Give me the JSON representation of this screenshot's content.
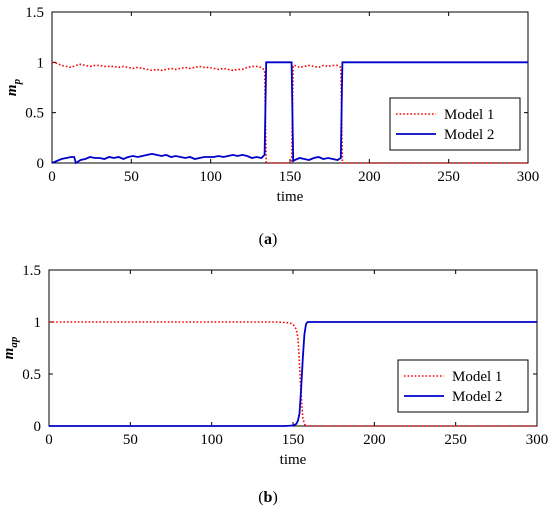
{
  "colors": {
    "model1": "#ff0000",
    "model2": "#0000cc",
    "axis": "#000000"
  },
  "chart_data": [
    {
      "type": "line",
      "panel_label": "(a)",
      "panel_letter": "a",
      "xlabel": "time",
      "ylabel": "m",
      "ylabel_sub": "p",
      "xlim": [
        0,
        300
      ],
      "ylim": [
        0,
        1.5
      ],
      "xticks": [
        0,
        50,
        100,
        150,
        200,
        250,
        300
      ],
      "yticks": [
        0,
        0.5,
        1,
        1.5
      ],
      "ytick_labels": [
        "0",
        "0.5",
        "1",
        "1.5"
      ],
      "legend_position": "center-right",
      "grid": false,
      "series": [
        {
          "name": "Model 1",
          "style": "dotted",
          "color": "#ff0000",
          "x": [
            0,
            3,
            6,
            9,
            12,
            15,
            18,
            21,
            24,
            27,
            30,
            33,
            36,
            39,
            42,
            45,
            48,
            51,
            54,
            57,
            60,
            63,
            66,
            69,
            72,
            75,
            78,
            81,
            84,
            87,
            90,
            93,
            96,
            99,
            102,
            105,
            108,
            111,
            114,
            117,
            120,
            123,
            126,
            129,
            132,
            134,
            135,
            136,
            150,
            151,
            152,
            153,
            156,
            159,
            162,
            165,
            168,
            171,
            174,
            177,
            180,
            182,
            183,
            184,
            300
          ],
          "y": [
            1.0,
            0.99,
            0.97,
            0.96,
            0.95,
            0.97,
            0.98,
            0.97,
            0.96,
            0.97,
            0.97,
            0.96,
            0.96,
            0.96,
            0.95,
            0.96,
            0.95,
            0.94,
            0.95,
            0.94,
            0.93,
            0.92,
            0.93,
            0.92,
            0.93,
            0.94,
            0.93,
            0.94,
            0.95,
            0.94,
            0.95,
            0.96,
            0.95,
            0.95,
            0.94,
            0.93,
            0.94,
            0.93,
            0.92,
            0.93,
            0.93,
            0.95,
            0.96,
            0.96,
            0.95,
            0.92,
            0.0,
            0.0,
            0.0,
            0.0,
            0.97,
            0.97,
            0.95,
            0.96,
            0.97,
            0.96,
            0.95,
            0.97,
            0.96,
            0.97,
            0.97,
            0.95,
            0.0,
            0.0,
            0.0
          ]
        },
        {
          "name": "Model 2",
          "style": "solid",
          "color": "#0000cc",
          "x": [
            0,
            3,
            6,
            9,
            12,
            14,
            15,
            18,
            21,
            24,
            27,
            30,
            33,
            36,
            39,
            42,
            45,
            48,
            51,
            54,
            57,
            60,
            63,
            66,
            69,
            72,
            75,
            78,
            81,
            84,
            87,
            90,
            93,
            96,
            99,
            102,
            105,
            108,
            111,
            114,
            117,
            120,
            123,
            126,
            129,
            132,
            134,
            135,
            136,
            150,
            151,
            152,
            153,
            156,
            159,
            162,
            165,
            168,
            171,
            174,
            177,
            180,
            182,
            183,
            184,
            300
          ],
          "y": [
            0.0,
            0.02,
            0.04,
            0.05,
            0.06,
            0.06,
            0.0,
            0.03,
            0.04,
            0.06,
            0.05,
            0.05,
            0.04,
            0.06,
            0.05,
            0.06,
            0.04,
            0.06,
            0.07,
            0.06,
            0.07,
            0.08,
            0.09,
            0.08,
            0.07,
            0.08,
            0.06,
            0.07,
            0.06,
            0.05,
            0.06,
            0.04,
            0.05,
            0.06,
            0.06,
            0.06,
            0.07,
            0.06,
            0.07,
            0.08,
            0.07,
            0.08,
            0.07,
            0.05,
            0.06,
            0.05,
            0.08,
            1.0,
            1.0,
            1.0,
            1.0,
            0.02,
            0.03,
            0.05,
            0.04,
            0.03,
            0.05,
            0.06,
            0.04,
            0.05,
            0.04,
            0.03,
            0.05,
            1.0,
            1.0,
            1.0
          ]
        }
      ]
    },
    {
      "type": "line",
      "panel_label": "(b)",
      "panel_letter": "b",
      "xlabel": "time",
      "ylabel": "m",
      "ylabel_sub": "ap",
      "xlim": [
        0,
        300
      ],
      "ylim": [
        0,
        1.5
      ],
      "xticks": [
        0,
        50,
        100,
        150,
        200,
        250,
        300
      ],
      "yticks": [
        0,
        0.5,
        1,
        1.5
      ],
      "ytick_labels": [
        "0",
        "0.5",
        "1",
        "1.5"
      ],
      "legend_position": "center-right",
      "grid": false,
      "series": [
        {
          "name": "Model 1",
          "style": "dotted",
          "color": "#ff0000",
          "x": [
            0,
            140,
            145,
            148,
            150,
            152,
            153,
            154,
            155,
            156,
            157,
            158,
            160,
            300
          ],
          "y": [
            1.0,
            1.0,
            0.995,
            0.99,
            0.98,
            0.93,
            0.85,
            0.6,
            0.3,
            0.08,
            0.02,
            0.0,
            0.0,
            0.0
          ]
        },
        {
          "name": "Model 2",
          "style": "solid",
          "color": "#0000cc",
          "x": [
            0,
            145,
            150,
            152,
            153,
            154,
            155,
            156,
            157,
            158,
            159,
            300
          ],
          "y": [
            0.0,
            0.0,
            0.005,
            0.02,
            0.05,
            0.12,
            0.35,
            0.65,
            0.88,
            0.98,
            1.0,
            1.0
          ]
        }
      ]
    }
  ]
}
